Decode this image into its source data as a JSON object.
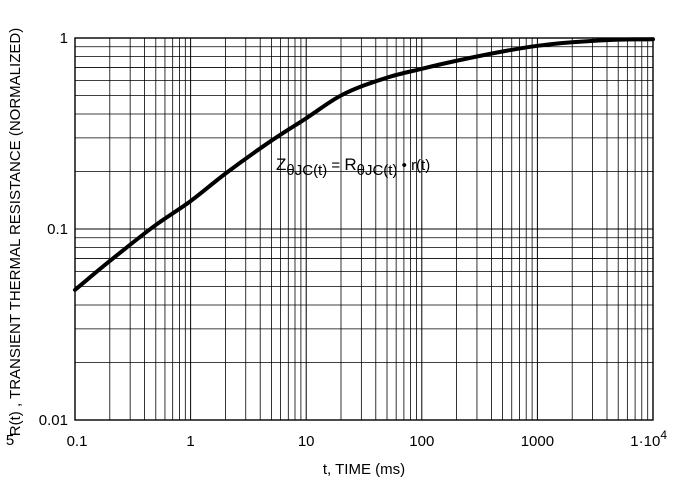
{
  "chart_data": {
    "type": "line",
    "xlabel": "t, TIME (ms)",
    "ylabel": "R(t) , TRANSIENT THERMAL RESISTANCE (NORMALIZED)",
    "x_scale": "log",
    "y_scale": "log",
    "xlim": [
      0.1,
      10000
    ],
    "ylim": [
      0.01,
      1
    ],
    "grid": true,
    "x_tick_labels": [
      "0.1",
      "1",
      "10",
      "100",
      "1000",
      "1·10"
    ],
    "x_tick_label_last_exponent": "4",
    "y_tick_labels": [
      "1",
      "0.1",
      "0.01"
    ],
    "stray_label": "5",
    "annotation": {
      "z": "Z",
      "z_sub": "θJC(t)",
      "equals": " = ",
      "r": "R",
      "r_sub": "θJC(t)",
      "dot": " • ",
      "rt": "r(t)"
    },
    "series": [
      {
        "x": [
          0.1,
          0.2,
          0.5,
          1,
          2,
          5,
          10,
          20,
          50,
          100,
          200,
          500,
          1000,
          2000,
          5000,
          10000
        ],
        "y": [
          0.048,
          0.068,
          0.105,
          0.14,
          0.195,
          0.29,
          0.38,
          0.5,
          0.62,
          0.69,
          0.76,
          0.85,
          0.91,
          0.95,
          0.98,
          0.985
        ]
      }
    ]
  }
}
